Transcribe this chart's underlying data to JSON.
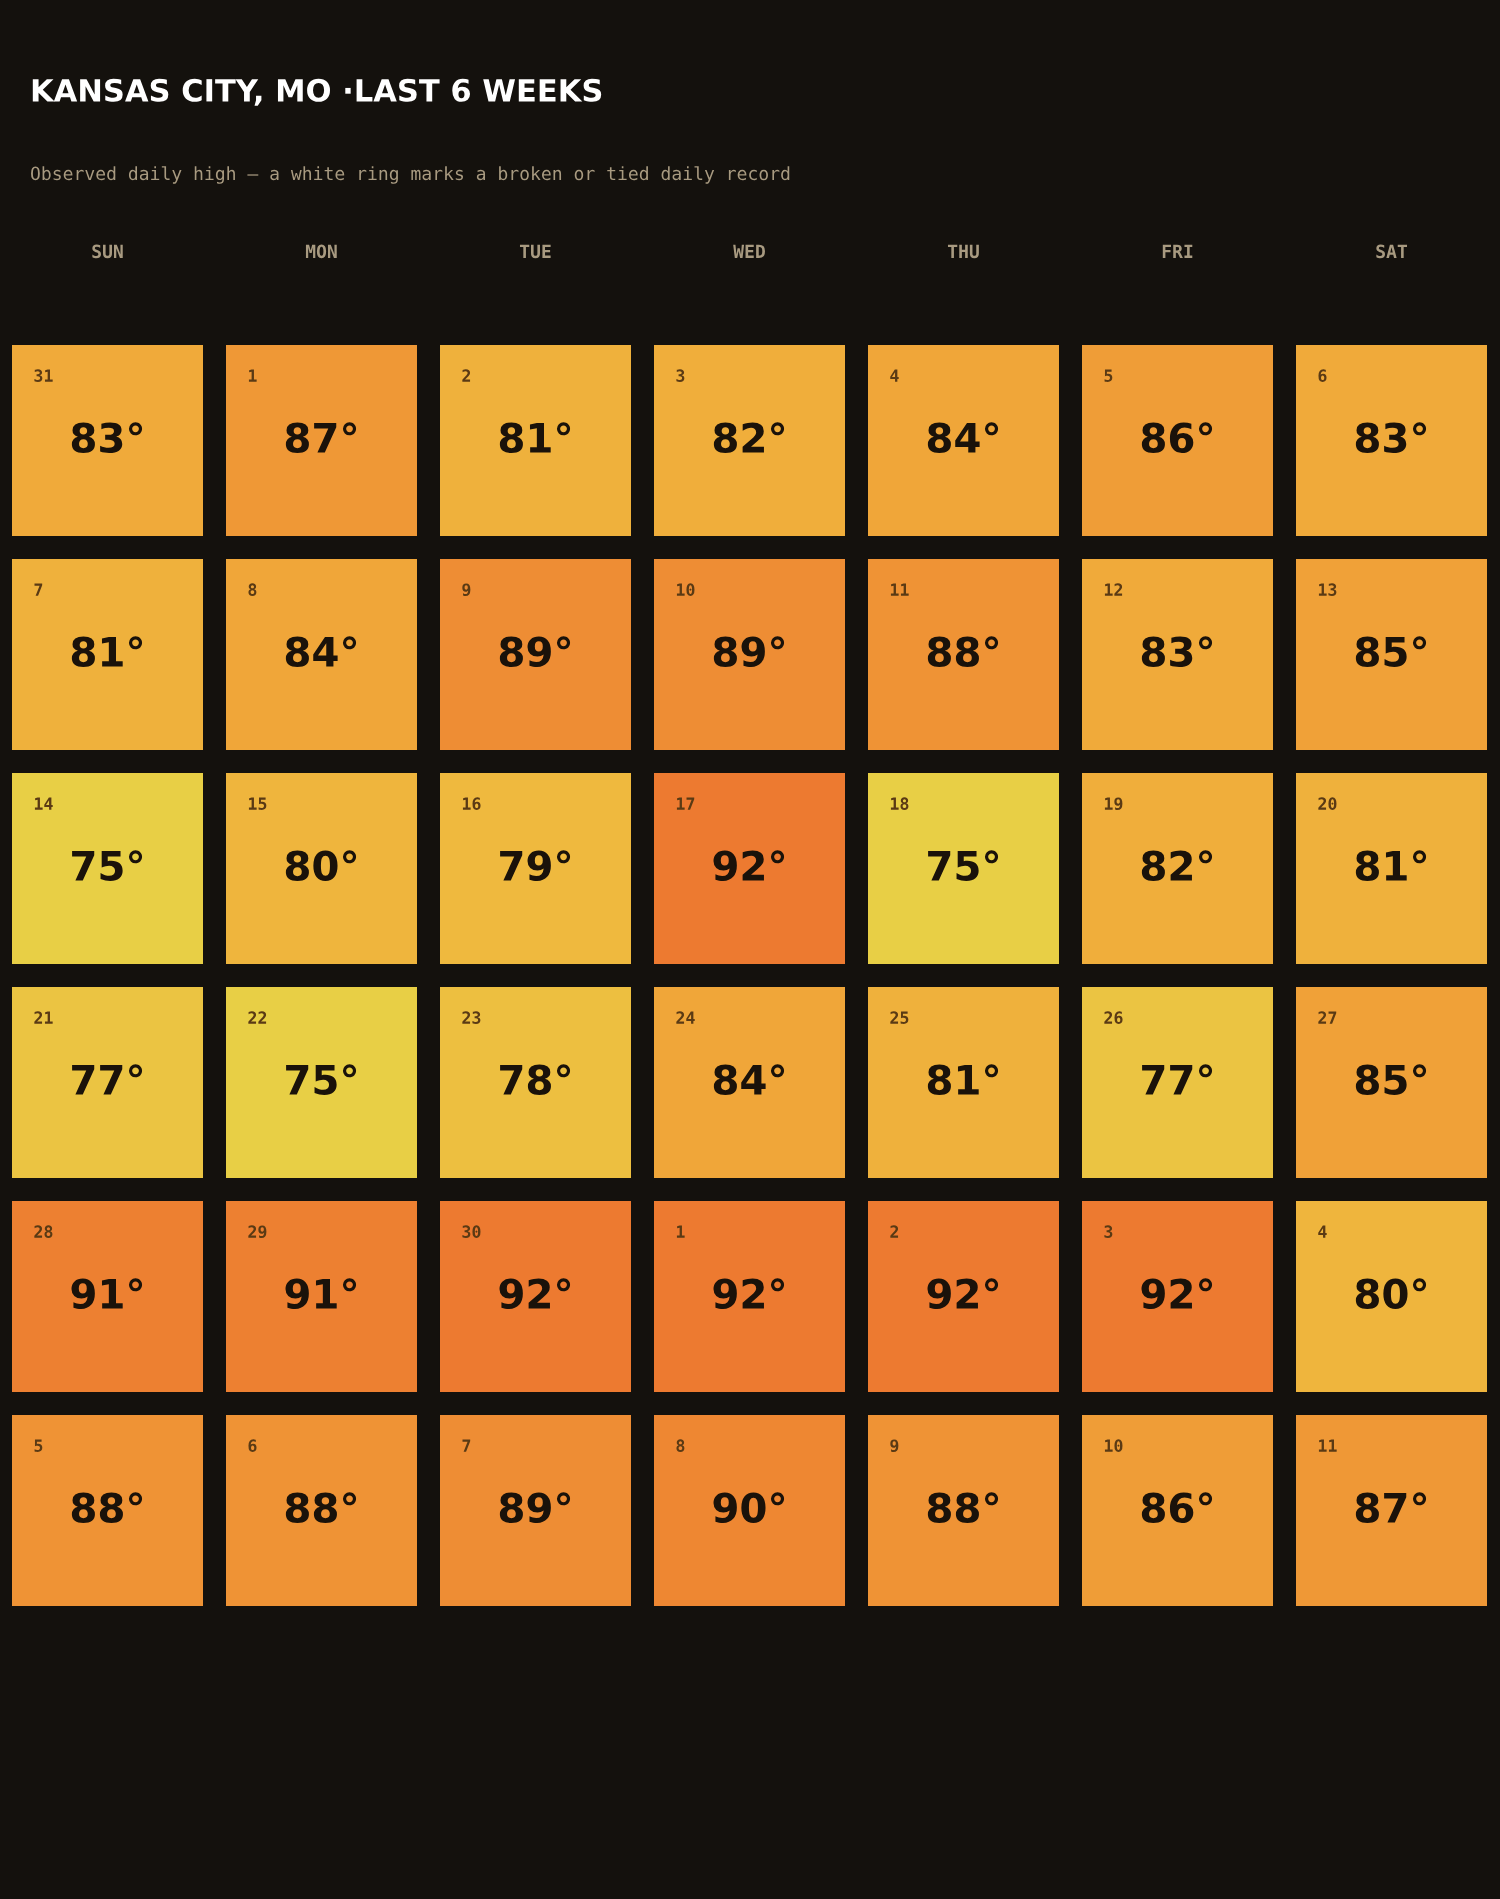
{
  "chart_data": {
    "type": "heatmap",
    "title": "KANSAS CITY, MO ·LAST 6 WEEKS",
    "subtitle": "Observed daily high — a white ring marks a broken or tied daily record",
    "categories": [
      "SUN",
      "MON",
      "TUE",
      "WED",
      "THU",
      "FRI",
      "SAT"
    ],
    "y_categories": [
      null,
      null,
      null,
      null,
      null,
      null
    ],
    "cells": [
      [
        83,
        87,
        81,
        82,
        84,
        86,
        83
      ],
      [
        81,
        84,
        89,
        89,
        88,
        83,
        85
      ],
      [
        75,
        80,
        79,
        92,
        75,
        82,
        81
      ],
      [
        77,
        75,
        78,
        84,
        81,
        77,
        85
      ],
      [
        91,
        91,
        92,
        92,
        92,
        92,
        80
      ],
      [
        88,
        88,
        89,
        90,
        88,
        86,
        87
      ]
    ],
    "cell_labels": [
      [
        "83°",
        "87°",
        "81°",
        "82°",
        "84°",
        "86°",
        "83°"
      ],
      [
        "81°",
        "84°",
        "89°",
        "89°",
        "88°",
        "83°",
        "85°"
      ],
      [
        "75°",
        "80°",
        "79°",
        "92°",
        "75°",
        "82°",
        "81°"
      ],
      [
        "77°",
        "75°",
        "78°",
        "84°",
        "81°",
        "77°",
        "85°"
      ],
      [
        "91°",
        "91°",
        "92°",
        "92°",
        "92°",
        "92°",
        "80°"
      ],
      [
        "88°",
        "88°",
        "89°",
        "90°",
        "88°",
        "86°",
        "87°"
      ]
    ],
    "annotations": [
      "31",
      "1",
      "2",
      "3",
      "4",
      "5",
      "6",
      "7",
      "8",
      "9",
      "10",
      "11",
      "12",
      "13",
      "14",
      "15",
      "16",
      "17",
      "18",
      "19",
      "20",
      "21",
      "22",
      "23",
      "24",
      "25",
      "26",
      "27",
      "28",
      "29",
      "30",
      "1",
      "2",
      "3",
      "4",
      "5",
      "6",
      "7",
      "8",
      "9",
      "10",
      "11"
    ]
  }
}
